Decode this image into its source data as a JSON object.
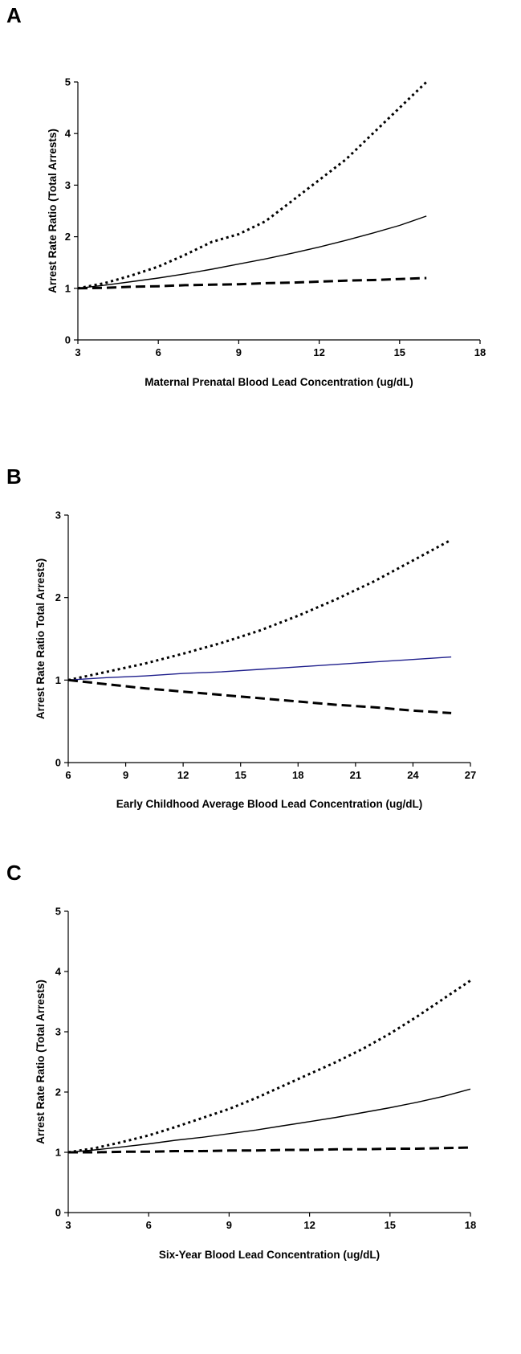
{
  "chart_data": [
    {
      "panel": "A",
      "type": "line",
      "xlabel": "Maternal Prenatal Blood Lead Concentration (ug/dL)",
      "ylabel": "Arrest Rate Ratio (Total Arrests)",
      "xlim": [
        3,
        18
      ],
      "ylim": [
        0,
        5
      ],
      "xticks": [
        3,
        6,
        9,
        12,
        15,
        18
      ],
      "yticks": [
        0,
        1,
        2,
        3,
        4,
        5
      ],
      "grid": false,
      "series": [
        {
          "style": "dotted",
          "color": "#000000",
          "x": [
            3,
            4,
            5,
            6,
            7,
            8,
            9,
            10,
            11,
            12,
            13,
            14,
            15,
            16
          ],
          "y": [
            1.0,
            1.1,
            1.25,
            1.42,
            1.65,
            1.9,
            2.05,
            2.3,
            2.7,
            3.1,
            3.5,
            4.0,
            4.5,
            5.0
          ]
        },
        {
          "style": "solid",
          "color": "#000000",
          "x": [
            3,
            4,
            5,
            6,
            7,
            8,
            9,
            10,
            11,
            12,
            13,
            14,
            15,
            16
          ],
          "y": [
            1.0,
            1.06,
            1.13,
            1.2,
            1.28,
            1.37,
            1.47,
            1.57,
            1.68,
            1.8,
            1.93,
            2.07,
            2.22,
            2.4
          ]
        },
        {
          "style": "dashed",
          "color": "#000000",
          "x": [
            3,
            4,
            5,
            6,
            7,
            8,
            9,
            10,
            11,
            12,
            13,
            14,
            15,
            16
          ],
          "y": [
            1.0,
            1.01,
            1.03,
            1.04,
            1.06,
            1.07,
            1.08,
            1.1,
            1.11,
            1.13,
            1.15,
            1.16,
            1.18,
            1.2
          ]
        }
      ]
    },
    {
      "panel": "B",
      "type": "line",
      "xlabel": "Early Childhood Average Blood Lead Concentration (ug/dL)",
      "ylabel": "Arrest Rate Ratio Total Arrests)",
      "xlim": [
        6,
        27
      ],
      "ylim": [
        0,
        3
      ],
      "xticks": [
        6,
        9,
        12,
        15,
        18,
        21,
        24,
        27
      ],
      "yticks": [
        0,
        1,
        2,
        3
      ],
      "grid": false,
      "series": [
        {
          "style": "dotted",
          "color": "#000000",
          "x": [
            6,
            8,
            10,
            12,
            14,
            16,
            18,
            20,
            22,
            24,
            26
          ],
          "y": [
            1.0,
            1.1,
            1.2,
            1.32,
            1.45,
            1.6,
            1.78,
            1.98,
            2.2,
            2.45,
            2.7
          ]
        },
        {
          "style": "solid",
          "color": "#1f1f8c",
          "x": [
            6,
            8,
            10,
            12,
            14,
            16,
            18,
            20,
            22,
            24,
            26
          ],
          "y": [
            1.0,
            1.03,
            1.05,
            1.08,
            1.1,
            1.13,
            1.16,
            1.19,
            1.22,
            1.25,
            1.28
          ]
        },
        {
          "style": "dashed",
          "color": "#000000",
          "x": [
            6,
            8,
            10,
            12,
            14,
            16,
            18,
            20,
            22,
            24,
            26
          ],
          "y": [
            1.0,
            0.95,
            0.9,
            0.86,
            0.82,
            0.78,
            0.74,
            0.7,
            0.67,
            0.63,
            0.6
          ]
        }
      ]
    },
    {
      "panel": "C",
      "type": "line",
      "xlabel": "Six-Year Blood Lead Concentration (ug/dL)",
      "ylabel": "Arrest Rate Ratio (Total Arrests)",
      "xlim": [
        3,
        18
      ],
      "ylim": [
        0,
        5
      ],
      "xticks": [
        3,
        6,
        9,
        12,
        15,
        18
      ],
      "yticks": [
        0,
        1,
        2,
        3,
        4,
        5
      ],
      "grid": false,
      "series": [
        {
          "style": "dotted",
          "color": "#000000",
          "x": [
            3,
            4,
            5,
            6,
            7,
            8,
            9,
            10,
            11,
            12,
            13,
            14,
            15,
            16,
            17,
            18
          ],
          "y": [
            1.0,
            1.07,
            1.17,
            1.28,
            1.42,
            1.57,
            1.72,
            1.9,
            2.1,
            2.3,
            2.5,
            2.72,
            2.97,
            3.25,
            3.55,
            3.85
          ]
        },
        {
          "style": "solid",
          "color": "#000000",
          "x": [
            3,
            4,
            5,
            6,
            7,
            8,
            9,
            10,
            11,
            12,
            13,
            14,
            15,
            16,
            17,
            18
          ],
          "y": [
            1.0,
            1.04,
            1.09,
            1.14,
            1.2,
            1.25,
            1.31,
            1.37,
            1.44,
            1.51,
            1.58,
            1.66,
            1.74,
            1.83,
            1.93,
            2.05
          ]
        },
        {
          "style": "dashed",
          "color": "#000000",
          "x": [
            3,
            4,
            5,
            6,
            7,
            8,
            9,
            10,
            11,
            12,
            13,
            14,
            15,
            16,
            17,
            18
          ],
          "y": [
            1.0,
            1.0,
            1.01,
            1.01,
            1.02,
            1.02,
            1.03,
            1.03,
            1.04,
            1.04,
            1.05,
            1.05,
            1.06,
            1.06,
            1.07,
            1.08
          ]
        }
      ]
    }
  ]
}
